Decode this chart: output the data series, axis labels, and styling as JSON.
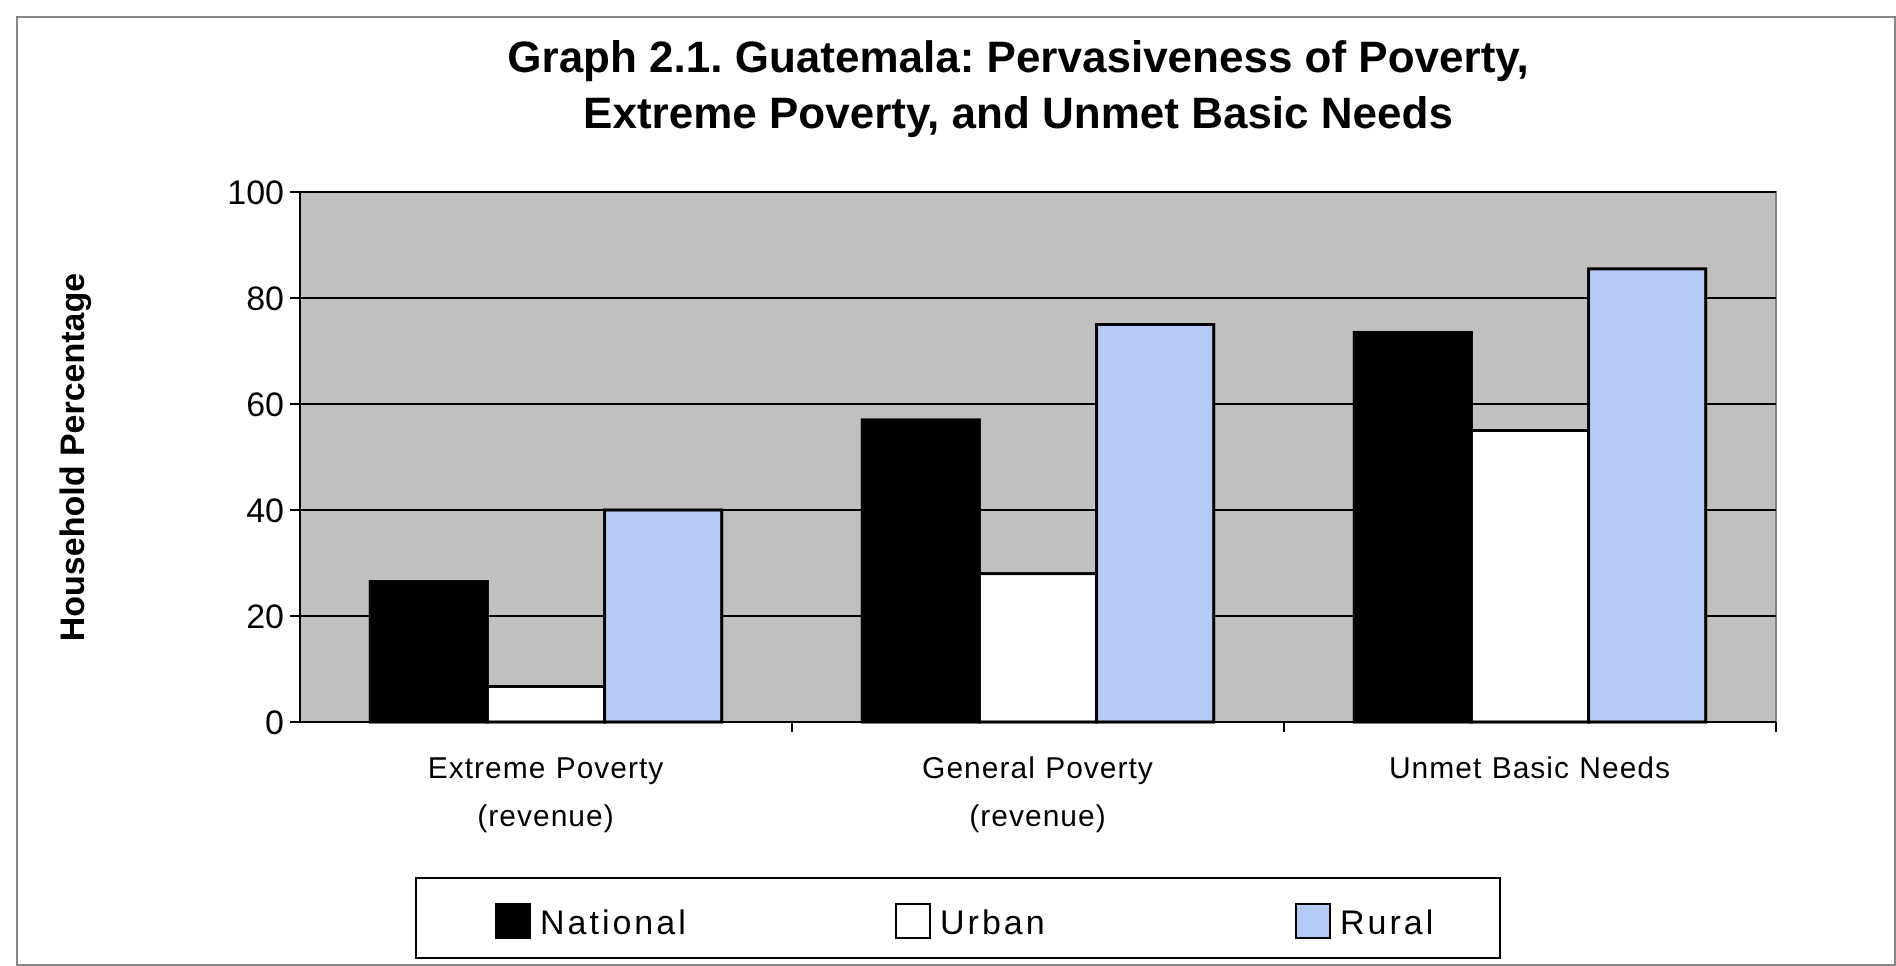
{
  "chart_data": {
    "type": "bar",
    "title": "Graph 2.1. Guatemala: Pervasiveness of Poverty, Extreme Poverty, and Unmet Basic Needs",
    "ylabel": "Household Percentage",
    "categories": [
      "Extreme Poverty (revenue)",
      "General Poverty (revenue)",
      "Unmet Basic Needs"
    ],
    "series": [
      {
        "name": "National",
        "color": "#000000",
        "values": [
          26.5,
          57,
          73.5
        ]
      },
      {
        "name": "Urban",
        "color": "#ffffff",
        "values": [
          6.7,
          28,
          55
        ]
      },
      {
        "name": "Rural",
        "color": "#b4ccf5",
        "values": [
          40,
          75,
          85.5
        ]
      }
    ],
    "ylim": [
      0,
      100
    ],
    "yticks": [
      0,
      20,
      40,
      60,
      80,
      100
    ],
    "grid": "y",
    "legend": "bottom"
  }
}
